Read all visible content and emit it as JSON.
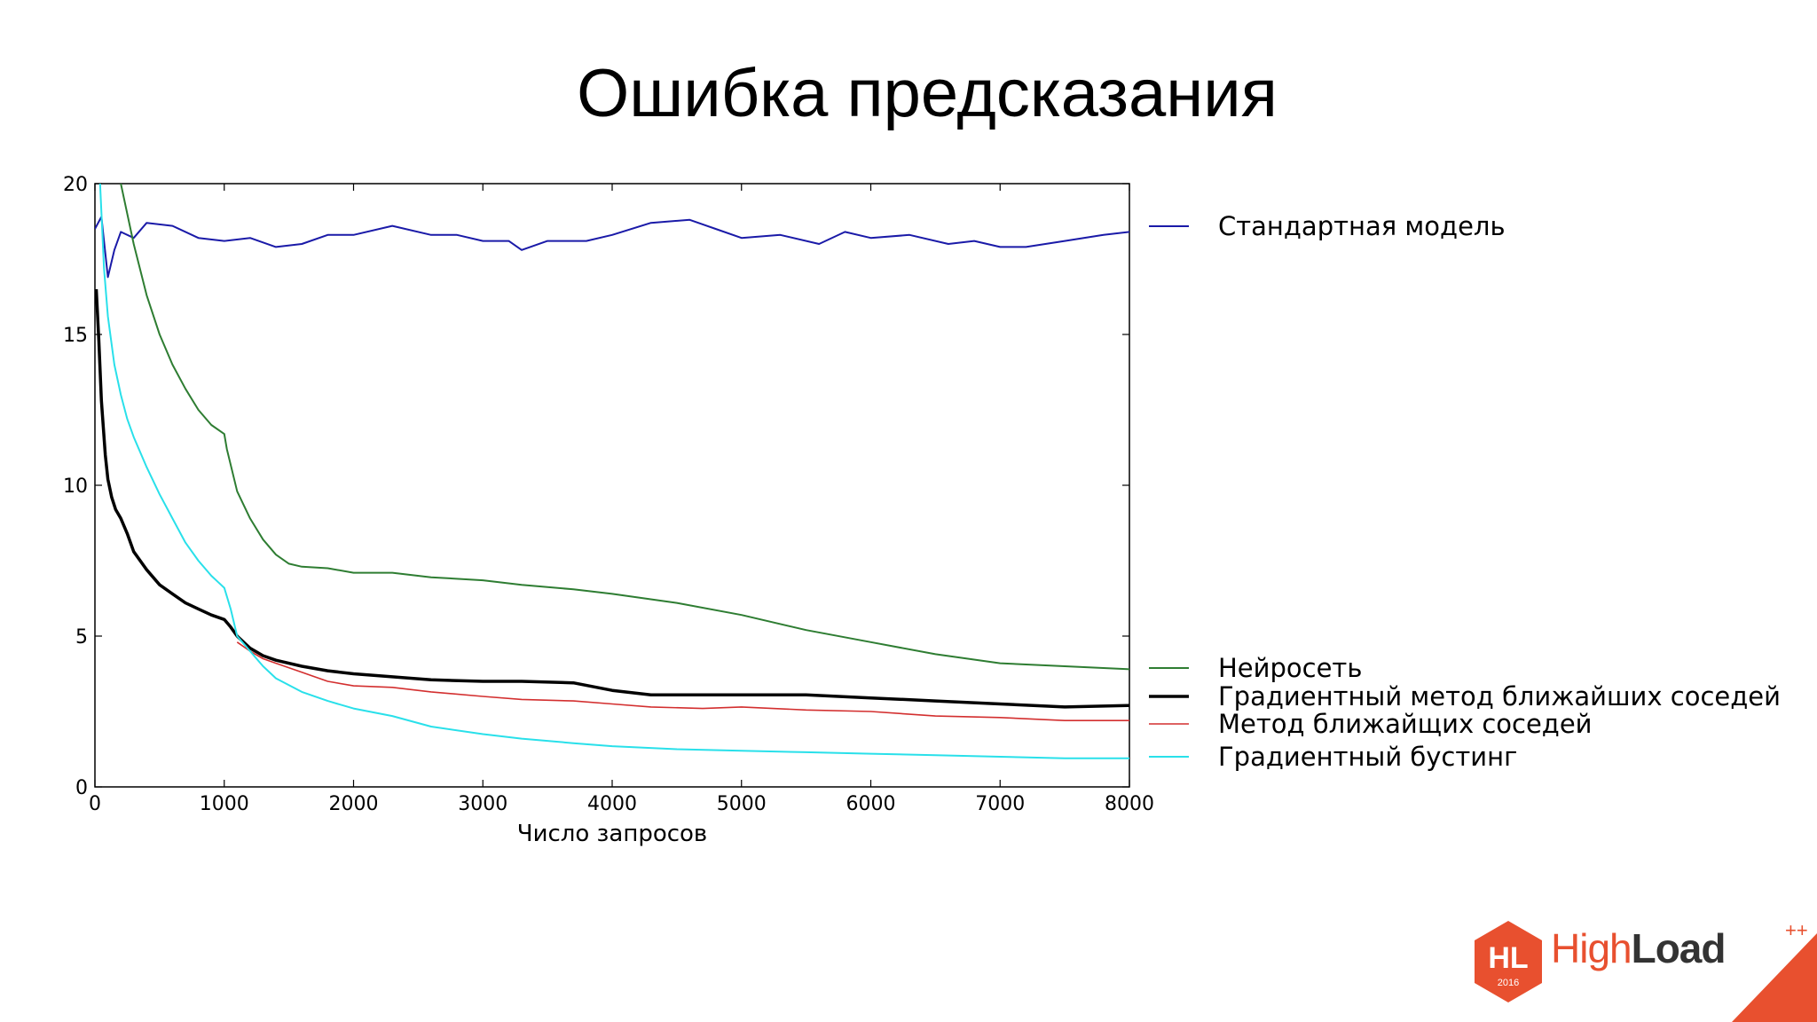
{
  "slide": {
    "title": "Ошибка предсказания"
  },
  "logo": {
    "mark": "HL",
    "year": "2016",
    "name_light": "High",
    "name_bold": "Load",
    "plus": "++",
    "color": "#e8502f"
  },
  "chart_data": {
    "type": "line",
    "title": "",
    "xlabel": "Число запросов",
    "ylabel": "",
    "xlim": [
      0,
      8000
    ],
    "ylim": [
      0,
      20
    ],
    "xticks": [
      0,
      1000,
      2000,
      3000,
      4000,
      5000,
      6000,
      7000,
      8000
    ],
    "yticks": [
      0,
      5,
      10,
      15,
      20
    ],
    "grid": false,
    "legend_position": "right",
    "series": [
      {
        "name": "Стандартная модель",
        "color": "#1a1aa8",
        "x": [
          0,
          50,
          100,
          150,
          200,
          300,
          400,
          600,
          800,
          1000,
          1200,
          1400,
          1600,
          1800,
          2000,
          2300,
          2600,
          2800,
          3000,
          3200,
          3300,
          3500,
          3800,
          4000,
          4300,
          4600,
          4800,
          5000,
          5300,
          5600,
          5800,
          6000,
          6300,
          6600,
          6800,
          7000,
          7200,
          7500,
          7800,
          8000
        ],
        "y": [
          18.5,
          18.9,
          16.9,
          17.8,
          18.4,
          18.2,
          18.7,
          18.6,
          18.2,
          18.1,
          18.2,
          17.9,
          18.0,
          18.3,
          18.3,
          18.6,
          18.3,
          18.3,
          18.1,
          18.1,
          17.8,
          18.1,
          18.1,
          18.3,
          18.7,
          18.8,
          18.5,
          18.2,
          18.3,
          18.0,
          18.4,
          18.2,
          18.3,
          18.0,
          18.1,
          17.9,
          17.9,
          18.1,
          18.3,
          18.4
        ]
      },
      {
        "name": "Нейросеть",
        "color": "#2e7d32",
        "x": [
          200,
          300,
          400,
          500,
          600,
          700,
          800,
          900,
          1000,
          1020,
          1100,
          1200,
          1300,
          1400,
          1500,
          1600,
          1800,
          2000,
          2300,
          2600,
          3000,
          3300,
          3700,
          4000,
          4500,
          5000,
          5500,
          6000,
          6500,
          7000,
          7500,
          8000
        ],
        "y": [
          20,
          18.0,
          16.3,
          15.0,
          14.0,
          13.2,
          12.5,
          12.0,
          11.7,
          11.2,
          9.8,
          8.9,
          8.2,
          7.7,
          7.4,
          7.3,
          7.25,
          7.1,
          7.1,
          6.95,
          6.85,
          6.7,
          6.55,
          6.4,
          6.1,
          5.7,
          5.2,
          4.8,
          4.4,
          4.1,
          4.0,
          3.9
        ]
      },
      {
        "name": "Градиентный метод ближайших соседей",
        "color": "#000000",
        "x": [
          10,
          30,
          50,
          80,
          100,
          130,
          160,
          200,
          250,
          300,
          400,
          500,
          600,
          700,
          800,
          900,
          1000,
          1050,
          1100,
          1200,
          1300,
          1400,
          1600,
          1800,
          2000,
          2300,
          2600,
          3000,
          3300,
          3700,
          4000,
          4300,
          4700,
          5000,
          5500,
          6000,
          6500,
          7000,
          7500,
          8000
        ],
        "y": [
          16.5,
          14.8,
          12.8,
          11.0,
          10.2,
          9.6,
          9.2,
          8.9,
          8.4,
          7.8,
          7.2,
          6.7,
          6.4,
          6.1,
          5.9,
          5.7,
          5.55,
          5.3,
          5.0,
          4.6,
          4.35,
          4.2,
          4.0,
          3.85,
          3.75,
          3.65,
          3.55,
          3.5,
          3.5,
          3.45,
          3.2,
          3.05,
          3.05,
          3.05,
          3.05,
          2.95,
          2.85,
          2.75,
          2.65,
          2.7
        ]
      },
      {
        "name": "Метод ближайщих соседей",
        "color": "#d32f2f",
        "x": [
          1100,
          1200,
          1300,
          1400,
          1600,
          1800,
          2000,
          2300,
          2600,
          3000,
          3300,
          3700,
          4000,
          4300,
          4700,
          5000,
          5500,
          6000,
          6500,
          7000,
          7500,
          8000
        ],
        "y": [
          4.8,
          4.5,
          4.25,
          4.1,
          3.8,
          3.5,
          3.35,
          3.3,
          3.15,
          3.0,
          2.9,
          2.85,
          2.75,
          2.65,
          2.6,
          2.65,
          2.55,
          2.5,
          2.35,
          2.3,
          2.2,
          2.2
        ]
      },
      {
        "name": "Градиентный бустинг",
        "color": "#29e0ea",
        "x": [
          40,
          70,
          100,
          150,
          200,
          250,
          300,
          400,
          500,
          600,
          700,
          800,
          900,
          950,
          1000,
          1050,
          1100,
          1200,
          1300,
          1400,
          1600,
          1800,
          2000,
          2300,
          2600,
          3000,
          3300,
          3700,
          4000,
          4500,
          5000,
          5500,
          6000,
          6500,
          7000,
          7500,
          8000
        ],
        "y": [
          20,
          17.2,
          15.6,
          14.0,
          13.0,
          12.2,
          11.6,
          10.6,
          9.7,
          8.9,
          8.1,
          7.5,
          7.0,
          6.8,
          6.6,
          5.9,
          5.0,
          4.5,
          4.0,
          3.6,
          3.15,
          2.85,
          2.6,
          2.35,
          2.0,
          1.75,
          1.6,
          1.45,
          1.35,
          1.25,
          1.2,
          1.15,
          1.1,
          1.05,
          1.0,
          0.95,
          0.95
        ]
      }
    ]
  }
}
